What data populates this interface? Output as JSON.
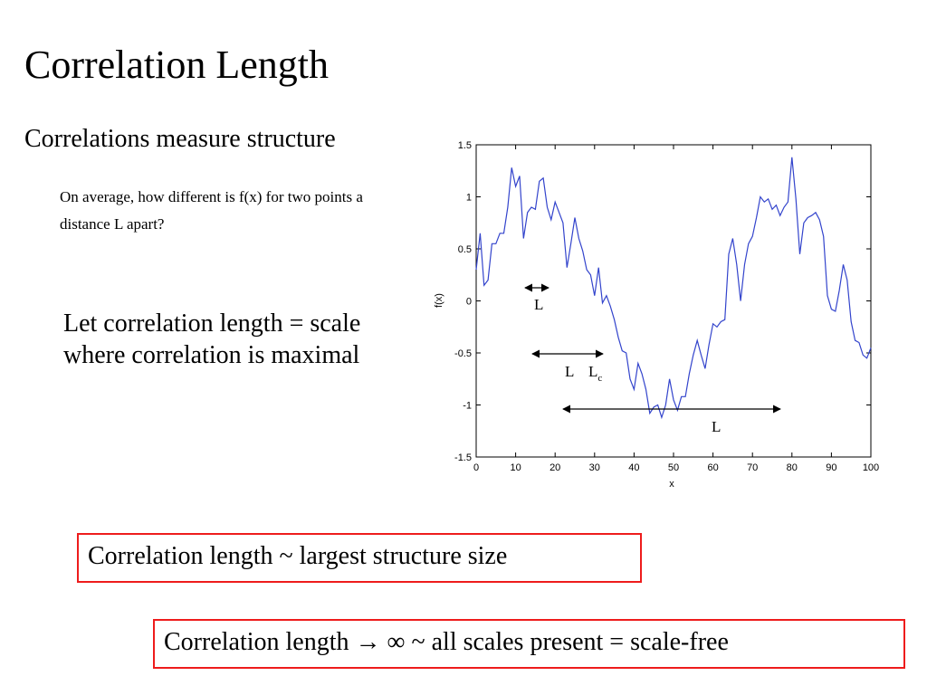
{
  "slide": {
    "title": "Correlation Length",
    "subtitle": "Correlations measure structure",
    "question": "On average, how different is f(x) for two points a distance L apart?",
    "definition": "Let correlation length = scale where correlation is maximal",
    "box1": "Correlation length ~ largest structure size",
    "box2": "Correlation length → ∞ ~ all scales present = scale-free"
  },
  "colors": {
    "series": "#3344cc",
    "box_border": "#ee1c1c"
  },
  "annotations": {
    "short_label": "L",
    "mid_label_left": "L",
    "mid_label_main": "L",
    "mid_label_sub": "c",
    "long_label": "L"
  },
  "chart_data": {
    "type": "line",
    "xlabel": "x",
    "ylabel": "f(x)",
    "xlim": [
      0,
      100
    ],
    "ylim": [
      -1.5,
      1.5
    ],
    "xticks": [
      0,
      10,
      20,
      30,
      40,
      50,
      60,
      70,
      80,
      90,
      100
    ],
    "yticks": [
      -1.5,
      -1,
      -0.5,
      0,
      0.5,
      1,
      1.5
    ],
    "ytick_labels": [
      "-1.5",
      "-1",
      "-0.5",
      "0",
      "0.5",
      "1",
      "1.5"
    ],
    "series": [
      {
        "x": [
          0,
          1,
          2,
          3,
          4,
          5,
          6,
          7,
          8,
          9,
          10,
          11,
          12,
          13,
          14,
          15,
          16,
          17,
          18,
          19,
          20,
          21,
          22,
          23,
          24,
          25,
          26,
          27,
          28,
          29,
          30,
          31,
          32,
          33,
          34,
          35,
          36,
          37,
          38,
          39,
          40,
          41,
          42,
          43,
          44,
          45,
          46,
          47,
          48,
          49,
          50,
          51,
          52,
          53,
          54,
          55,
          56,
          57,
          58,
          59,
          60,
          61,
          62,
          63,
          64,
          65,
          66,
          67,
          68,
          69,
          70,
          71,
          72,
          73,
          74,
          75,
          76,
          77,
          78,
          79,
          80,
          81,
          82,
          83,
          84,
          85,
          86,
          87,
          88,
          89,
          90,
          91,
          92,
          93,
          94,
          95,
          96,
          97,
          98,
          99,
          100
        ],
        "values": [
          0.3,
          0.65,
          0.15,
          0.2,
          0.55,
          0.55,
          0.65,
          0.65,
          0.9,
          1.28,
          1.1,
          1.2,
          0.6,
          0.85,
          0.9,
          0.88,
          1.15,
          1.18,
          0.9,
          0.78,
          0.95,
          0.85,
          0.75,
          0.32,
          0.55,
          0.8,
          0.6,
          0.48,
          0.3,
          0.25,
          0.05,
          0.32,
          -0.02,
          0.05,
          -0.05,
          -0.18,
          -0.35,
          -0.48,
          -0.5,
          -0.75,
          -0.85,
          -0.6,
          -0.7,
          -0.85,
          -1.08,
          -1.02,
          -1.0,
          -1.12,
          -1.0,
          -0.75,
          -0.95,
          -1.05,
          -0.92,
          -0.92,
          -0.7,
          -0.52,
          -0.38,
          -0.52,
          -0.65,
          -0.42,
          -0.22,
          -0.25,
          -0.2,
          -0.18,
          0.45,
          0.6,
          0.35,
          0.0,
          0.35,
          0.55,
          0.62,
          0.8,
          1.0,
          0.95,
          0.98,
          0.88,
          0.92,
          0.82,
          0.9,
          0.95,
          1.38,
          0.98,
          0.45,
          0.75,
          0.8,
          0.82,
          0.85,
          0.78,
          0.62,
          0.05,
          -0.08,
          -0.1,
          0.1,
          0.35,
          0.2,
          -0.2,
          -0.38,
          -0.4,
          -0.52,
          -0.55,
          -0.45
        ]
      }
    ]
  }
}
